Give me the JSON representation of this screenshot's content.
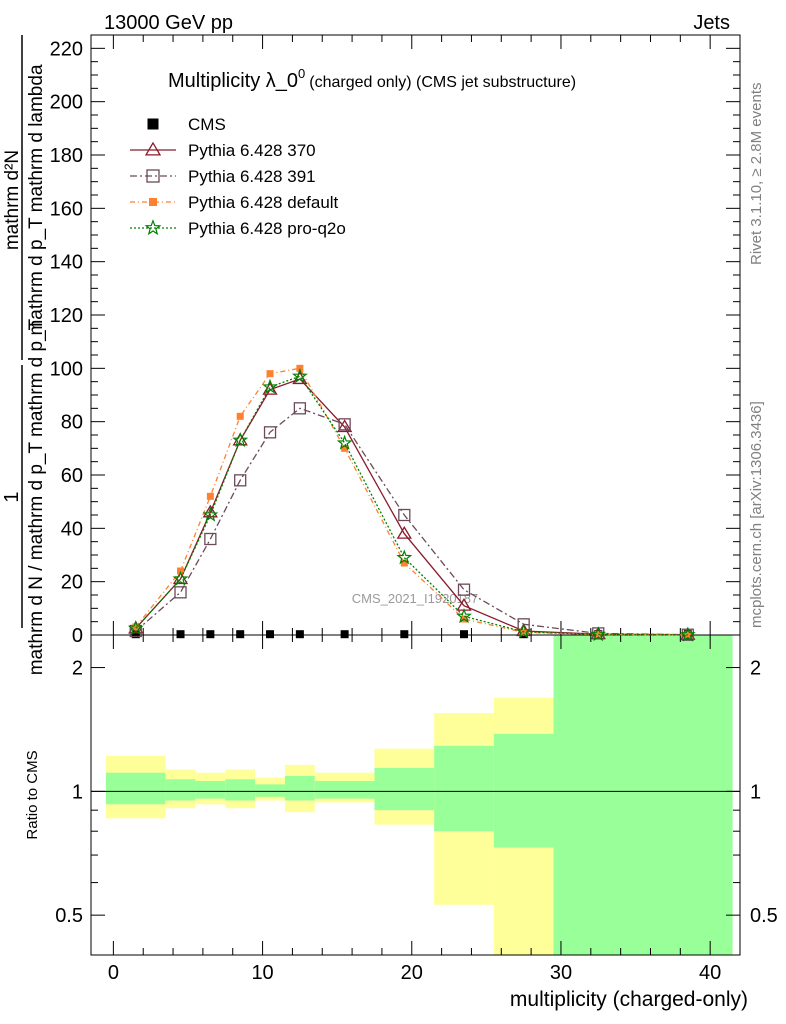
{
  "header": {
    "left": "13000 GeV pp",
    "right": "Jets"
  },
  "title": {
    "main": "Multiplicity λ_0",
    "sup": "0",
    "small": "(charged only) (CMS jet substructure)"
  },
  "side_labels": {
    "rivet": "Rivet 3.1.10, ≥ 2.8M events",
    "mcplots": "mcplots.cern.ch [arXiv:1306.3436]"
  },
  "watermark": "CMS_2021_I1920187",
  "ylabel_main": {
    "numerator": "mathrm d²N",
    "denominator": "mathrm d p_T mathrm d lambda"
  },
  "ylabel_prefactor": {
    "numerator": "1",
    "denominator": "mathrm d N / mathrm d p_T mathrm d p_T"
  },
  "ylabel_ratio": "Ratio to CMS",
  "xlabel": "multiplicity (charged-only)",
  "legend": [
    {
      "label": "CMS"
    },
    {
      "label": "Pythia 6.428 370"
    },
    {
      "label": "Pythia 6.428 391"
    },
    {
      "label": "Pythia 6.428 default"
    },
    {
      "label": "Pythia 6.428 pro-q2o"
    }
  ],
  "chart_data": {
    "type": "line",
    "x": [
      1.5,
      4.5,
      6.5,
      8.5,
      10.5,
      12.5,
      15.5,
      19.5,
      23.5,
      27.5,
      32.5,
      38.5
    ],
    "bin_edges": [
      -0.5,
      3.5,
      5.5,
      7.5,
      9.5,
      11.5,
      13.5,
      17.5,
      21.5,
      25.5,
      29.5,
      35.5,
      41.5
    ],
    "xlim": [
      -1.5,
      42
    ],
    "ylim": [
      0,
      225
    ],
    "xticks": [
      0,
      10,
      20,
      30,
      40
    ],
    "yticks": [
      0,
      20,
      40,
      60,
      80,
      100,
      120,
      140,
      160,
      180,
      200,
      220
    ],
    "series": [
      {
        "name": "CMS",
        "color": "#000000",
        "marker": "square-filled",
        "values": [
          0.3,
          0.3,
          0.3,
          0.3,
          0.3,
          0.3,
          0.3,
          0.3,
          0.3,
          0.3,
          0.3,
          0.3
        ]
      },
      {
        "name": "Pythia 6.428 370",
        "color": "#8b1a2b",
        "marker": "triangle-open",
        "dash": "",
        "values": [
          2.5,
          21,
          46,
          73,
          92,
          96,
          78,
          38,
          11,
          1.5,
          0.3,
          0.1
        ]
      },
      {
        "name": "Pythia 6.428 391",
        "color": "#6b4a5a",
        "marker": "square-open",
        "dash": "7,3,2,3",
        "values": [
          1.5,
          16,
          36,
          58,
          76,
          85,
          79,
          45,
          17,
          4,
          0.6,
          0.1
        ]
      },
      {
        "name": "Pythia 6.428 default",
        "color": "#ff8030",
        "marker": "square-filled",
        "dash": "5,3,1,3",
        "values": [
          3,
          24,
          52,
          82,
          98,
          100,
          70,
          27,
          6,
          1,
          0.2,
          0.05
        ]
      },
      {
        "name": "Pythia 6.428 pro-q2o",
        "color": "#008000",
        "marker": "star",
        "dash": "2,2",
        "values": [
          2.5,
          21,
          45,
          73,
          93,
          97,
          72,
          29,
          7,
          1.2,
          0.2,
          0.05
        ]
      }
    ],
    "ratio": {
      "ylim": [
        0.4,
        2.4
      ],
      "yticks": [
        0.5,
        1,
        2
      ],
      "scale": "log",
      "yellow_band": [
        [
          1.22,
          0.86
        ],
        [
          1.13,
          0.91
        ],
        [
          1.11,
          0.93
        ],
        [
          1.13,
          0.91
        ],
        [
          1.08,
          0.95
        ],
        [
          1.16,
          0.89
        ],
        [
          1.11,
          0.94
        ],
        [
          1.27,
          0.83
        ],
        [
          1.55,
          0.53
        ],
        [
          1.69,
          0.35
        ],
        [
          2.4,
          0.35
        ],
        [
          2.4,
          0.35
        ]
      ],
      "green_band": [
        [
          1.11,
          0.93
        ],
        [
          1.07,
          0.95
        ],
        [
          1.06,
          0.96
        ],
        [
          1.07,
          0.95
        ],
        [
          1.04,
          0.97
        ],
        [
          1.09,
          0.95
        ],
        [
          1.06,
          0.96
        ],
        [
          1.14,
          0.9
        ],
        [
          1.29,
          0.8
        ],
        [
          1.38,
          0.73
        ],
        [
          2.4,
          0.35
        ],
        [
          2.4,
          0.35
        ]
      ]
    }
  }
}
